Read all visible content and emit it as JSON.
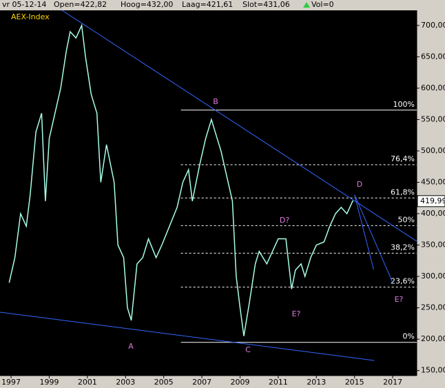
{
  "header": {
    "date": "vr 05-12-14",
    "open": "Open=422,82",
    "high": "Hoog=432,00",
    "low": "Laag=421,61",
    "close": "Slot=431,06",
    "volume": "Vol=0"
  },
  "chart_data": {
    "type": "line",
    "title": "AEX-Index",
    "series": [
      {
        "name": "AEX-Index",
        "color": "#a8ffe8",
        "x": [
          1996.9,
          1997.2,
          1997.5,
          1997.8,
          1998.0,
          1998.3,
          1998.6,
          1998.8,
          1999.0,
          1999.3,
          1999.6,
          1999.9,
          2000.1,
          2000.4,
          2000.7,
          2000.9,
          2001.2,
          2001.5,
          2001.7,
          2002.0,
          2002.4,
          2002.6,
          2002.9,
          2003.1,
          2003.3,
          2003.6,
          2003.9,
          2004.2,
          2004.6,
          2004.9,
          2005.3,
          2005.7,
          2006.0,
          2006.3,
          2006.5,
          2006.9,
          2007.2,
          2007.5,
          2007.8,
          2008.0,
          2008.3,
          2008.6,
          2008.8,
          2009.0,
          2009.2,
          2009.5,
          2009.8,
          2010.0,
          2010.4,
          2010.7,
          2011.0,
          2011.4,
          2011.7,
          2011.9,
          2012.2,
          2012.4,
          2012.7,
          2013.0,
          2013.4,
          2013.7,
          2014.0,
          2014.3,
          2014.6,
          2014.9,
          2014.94
        ],
        "values": [
          290,
          330,
          400,
          380,
          430,
          530,
          560,
          420,
          520,
          560,
          600,
          660,
          690,
          680,
          700,
          650,
          590,
          560,
          450,
          510,
          450,
          350,
          330,
          250,
          230,
          320,
          330,
          360,
          330,
          350,
          380,
          410,
          450,
          470,
          420,
          480,
          520,
          550,
          520,
          500,
          460,
          420,
          300,
          250,
          205,
          260,
          320,
          340,
          320,
          340,
          360,
          360,
          280,
          310,
          320,
          300,
          330,
          350,
          355,
          380,
          400,
          410,
          400,
          420,
          420
        ]
      }
    ],
    "trend_lines": [
      {
        "x": [
          1999.67,
          2018.26
        ],
        "values": [
          724,
          356
        ],
        "color": "#3366ff"
      },
      {
        "x": [
          1996.42,
          2016.04
        ],
        "values": [
          243,
          166
        ],
        "color": "#3366ff"
      },
      {
        "x": [
          2015.0,
          2016.0
        ],
        "values": [
          430,
          311
        ],
        "color": "#3366ff"
      },
      {
        "x": [
          2015.0,
          2017.0
        ],
        "values": [
          430,
          290
        ],
        "color": "#3366ff"
      }
    ],
    "fib_levels": [
      {
        "value": 565,
        "label": "100%",
        "solid": true
      },
      {
        "value": 478,
        "label": "76,4%",
        "solid": false
      },
      {
        "value": 425,
        "label": "61,8%",
        "solid": false
      },
      {
        "value": 381,
        "label": "50%",
        "solid": false
      },
      {
        "value": 337,
        "label": "38,2%",
        "solid": false
      },
      {
        "value": 283,
        "label": "23,6%",
        "solid": false
      },
      {
        "value": 195,
        "label": "0%",
        "solid": true
      }
    ],
    "fib_start": 2005.9,
    "annotations": [
      "A",
      "B",
      "C",
      "D",
      "D?",
      "E?",
      "E?"
    ],
    "last_value": {
      "value": 419.99,
      "label": "419,99"
    },
    "xlim": [
      1996.42,
      2018.26
    ],
    "xticks": [
      1997,
      1999,
      2001,
      2003,
      2005,
      2007,
      2009,
      2011,
      2013,
      2015,
      2017
    ],
    "ylim": [
      142,
      724
    ],
    "yticks": [
      {
        "value": 150,
        "label": "150,00"
      },
      {
        "value": 200,
        "label": "200,00"
      },
      {
        "value": 250,
        "label": "250,00"
      },
      {
        "value": 300,
        "label": "300,00"
      },
      {
        "value": 350,
        "label": "350,00"
      },
      {
        "value": 400,
        "label": "400,00"
      },
      {
        "value": 450,
        "label": "450,00"
      },
      {
        "value": 500,
        "label": "500,00"
      },
      {
        "value": 550,
        "label": "550,00"
      },
      {
        "value": 600,
        "label": "600,00"
      },
      {
        "value": 650,
        "label": "650,00"
      },
      {
        "value": 700,
        "label": "700,00"
      }
    ]
  }
}
